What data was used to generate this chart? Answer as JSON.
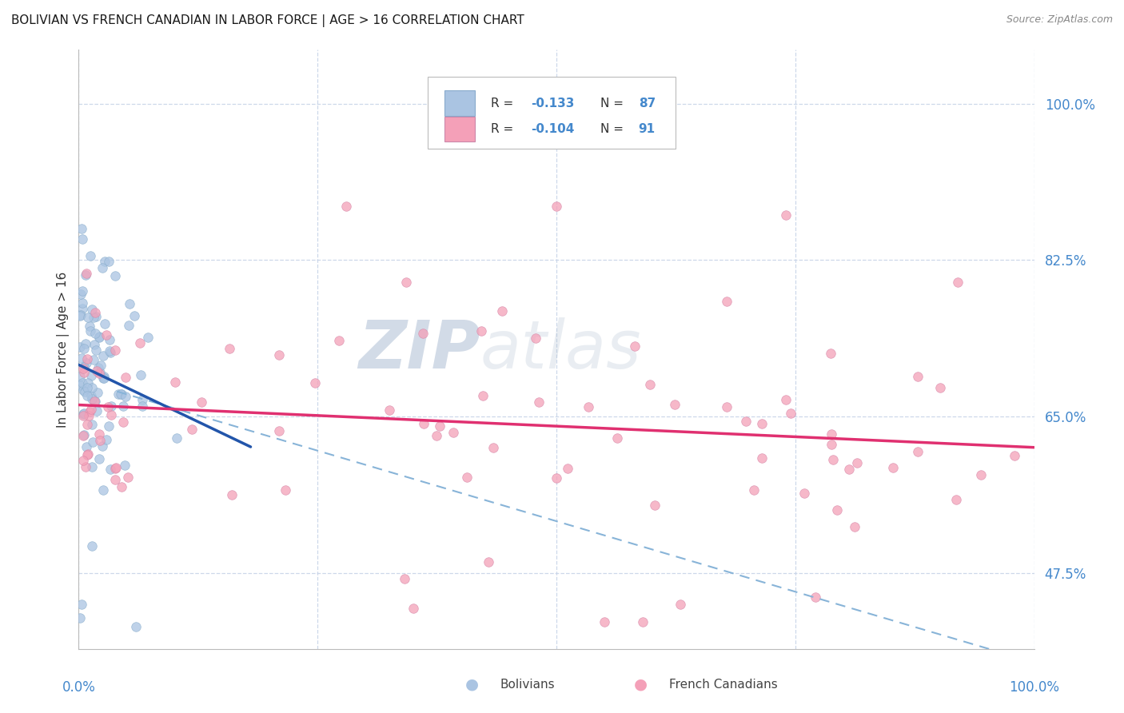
{
  "title": "BOLIVIAN VS FRENCH CANADIAN IN LABOR FORCE | AGE > 16 CORRELATION CHART",
  "source": "Source: ZipAtlas.com",
  "ylabel": "In Labor Force | Age > 16",
  "ytick_labels": [
    "47.5%",
    "65.0%",
    "82.5%",
    "100.0%"
  ],
  "ytick_values": [
    0.475,
    0.65,
    0.825,
    1.0
  ],
  "xrange": [
    0.0,
    1.0
  ],
  "yrange": [
    0.39,
    1.06
  ],
  "watermark_zip": "ZIP",
  "watermark_atlas": "atlas",
  "legend_r1": "-0.133",
  "legend_n1": "87",
  "legend_r2": "-0.104",
  "legend_n2": "91",
  "bolivian_color": "#aac4e2",
  "french_canadian_color": "#f4a0b8",
  "trend_bolivian_color": "#2255aa",
  "trend_french_color": "#e03070",
  "trend_dashed_color": "#88b4d8",
  "background_color": "#ffffff",
  "grid_color": "#c8d4e8",
  "title_color": "#1a1a1a",
  "axis_label_color": "#4488cc",
  "bottom_label_color": "#444444"
}
